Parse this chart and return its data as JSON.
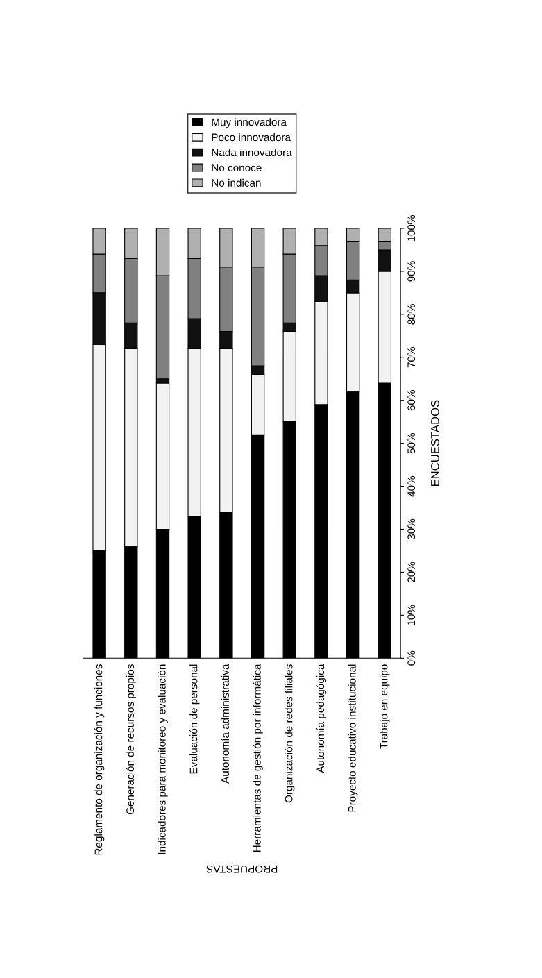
{
  "chart_data": {
    "type": "bar",
    "stacked": true,
    "xlabel": "PROPUESTAS",
    "ylabel": "ENCUESTADOS",
    "categories": [
      "Reglamento de organización y funciones",
      "Generación de recursos propios",
      "Indicadores para monitoreo y evaluación",
      "Evaluación de personal",
      "Autonomía administrativa",
      "Herramientas de gestión por informática",
      "Organización de redes filiales",
      "Autonomía pedagógica",
      "Proyecto educativo institucional",
      "Trabajo en equipo"
    ],
    "series": [
      {
        "name": "Muy innovadora",
        "color": "#000000",
        "values": [
          25,
          26,
          30,
          33,
          34,
          52,
          55,
          59,
          62,
          64
        ]
      },
      {
        "name": "Poco innovadora",
        "color": "#f2f2f2",
        "values": [
          48,
          46,
          34,
          39,
          38,
          14,
          21,
          24,
          23,
          26
        ]
      },
      {
        "name": "Nada innovadora",
        "color": "#111111",
        "values": [
          12,
          6,
          1,
          7,
          4,
          2,
          2,
          6,
          3,
          5
        ]
      },
      {
        "name": "No conoce",
        "color": "#808080",
        "values": [
          9,
          15,
          24,
          14,
          15,
          23,
          16,
          7,
          9,
          2
        ]
      },
      {
        "name": "No indican",
        "color": "#b0b0b0",
        "values": [
          6,
          7,
          11,
          7,
          9,
          9,
          6,
          4,
          3,
          3
        ]
      }
    ],
    "ylim": [
      0,
      100
    ],
    "yticks": [
      {
        "value": 0,
        "label": "0%"
      },
      {
        "value": 10,
        "label": "10%"
      },
      {
        "value": 20,
        "label": "20%"
      },
      {
        "value": 30,
        "label": "30%"
      },
      {
        "value": 40,
        "label": "40%"
      },
      {
        "value": 50,
        "label": "50%"
      },
      {
        "value": 60,
        "label": "60%"
      },
      {
        "value": 70,
        "label": "70%"
      },
      {
        "value": 80,
        "label": "80%"
      },
      {
        "value": 90,
        "label": "90%"
      },
      {
        "value": 100,
        "label": "100%"
      }
    ],
    "grid": false,
    "legend": "top"
  }
}
